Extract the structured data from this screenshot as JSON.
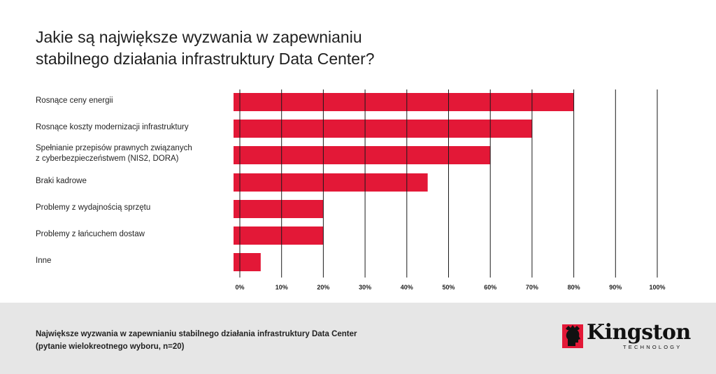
{
  "title_lines": [
    "Jakie są największe wyzwania w zapewnianiu",
    "stabilnego działania infrastruktury Data Center?"
  ],
  "chart_data": {
    "type": "bar",
    "orientation": "horizontal",
    "categories": [
      [
        "Rosnące ceny energii"
      ],
      [
        "Rosnące koszty modernizacji infrastruktury"
      ],
      [
        "Spełnianie przepisów prawnych związanych",
        "z cyberbezpieczeństwem (NIS2, DORA)"
      ],
      [
        "Braki kadrowe"
      ],
      [
        "Problemy z wydajnością sprzętu"
      ],
      [
        "Problemy z łańcuchem dostaw"
      ],
      [
        "Inne"
      ]
    ],
    "values": [
      80,
      70,
      60,
      45,
      20,
      20,
      5
    ],
    "unit": "%",
    "xlim": [
      0,
      100
    ],
    "ticks": [
      0,
      10,
      20,
      30,
      40,
      50,
      60,
      70,
      80,
      90,
      100
    ],
    "tick_labels": [
      "0%",
      "10%",
      "20%",
      "30%",
      "40%",
      "50%",
      "60%",
      "70%",
      "80%",
      "90%",
      "100%"
    ],
    "bar_color": "#e31837",
    "grid": true
  },
  "footnote_lines": [
    "Największe wyzwania w zapewnianiu stabilnego działania infrastruktury Data Center",
    "(pytanie wielokreotnego wyboru, n=20)"
  ],
  "logo": {
    "wordmark": "Kingston",
    "subtitle": "TECHNOLOGY",
    "color": "#e31837"
  },
  "colors": {
    "footer_bg": "#e6e6e6",
    "grid": "#1a1a1a"
  }
}
